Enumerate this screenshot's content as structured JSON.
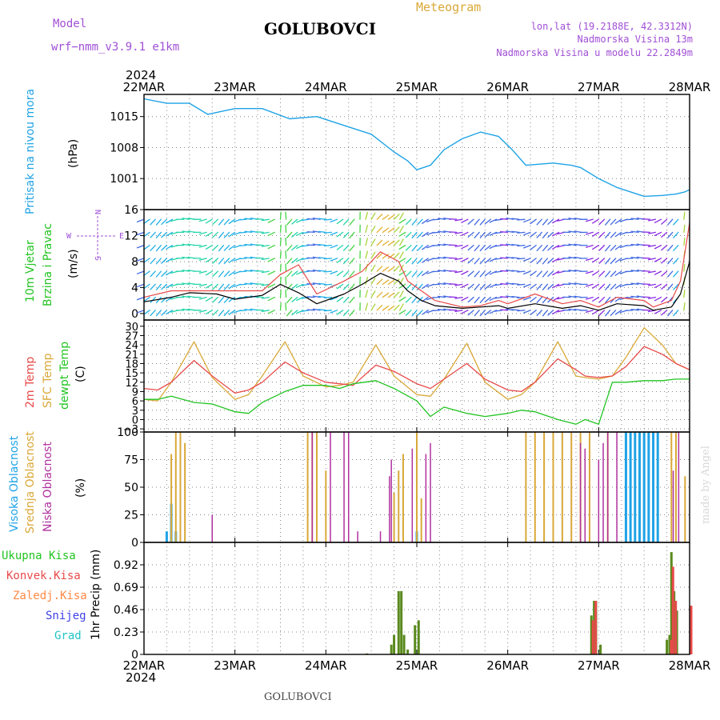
{
  "header": {
    "model_label": "Model",
    "model_name": "wrf−nmm_v3.9.1 e1km",
    "title": "GOLUBOVCI",
    "meteogram_label": "Meteogram",
    "lonlat": "lon,lat (19.2188E, 42.3312N)",
    "elevation": "Nadmorska Visina 13m",
    "model_elevation": "Nadmorska Visina u modelu 22.2849m",
    "year_top": "2024",
    "year_bottom": "2024",
    "footer_title": "GOLUBOVCI",
    "watermark": "made by Angel"
  },
  "colors": {
    "pressure": "#1fa3e6",
    "temp2m": "#e84a4a",
    "sfc_temp": "#d9a838",
    "dewpoint": "#22c422",
    "high_cloud": "#1fa3e6",
    "mid_cloud": "#d9a838",
    "low_cloud": "#b0309f",
    "total_precip": "#5a8a1e",
    "conv_precip": "#e84a4a",
    "gust": "#e84a4a",
    "wind_label": "#22c422",
    "legend_purple": "#a04fd6"
  },
  "chart_data": [
    {
      "type": "line",
      "name": "pressure-panel",
      "ylabel_main": "Pritisak na nivou mora",
      "ylabel_unit": "(hPa)",
      "ylim": [
        994,
        1020
      ],
      "yticks": [
        "1001",
        "1008",
        "1015"
      ],
      "ytick_values": [
        1001,
        1008,
        1015
      ],
      "x_day": [
        0,
        0.25,
        0.5,
        0.7,
        1.0,
        1.3,
        1.6,
        1.9,
        2.2,
        2.5,
        2.75,
        2.9,
        3.0,
        3.15,
        3.3,
        3.5,
        3.7,
        3.9,
        4.05,
        4.2,
        4.5,
        4.7,
        4.8,
        5.0,
        5.2,
        5.5,
        5.7,
        5.85,
        5.95,
        6.0
      ],
      "values": [
        1019,
        1018,
        1018,
        1015.5,
        1016.8,
        1016.8,
        1014.5,
        1015,
        1013,
        1011,
        1007,
        1005,
        1003,
        1004,
        1007.5,
        1010,
        1011.5,
        1010.5,
        1007.5,
        1004,
        1004.5,
        1004,
        1003.5,
        1001,
        999,
        997,
        997.2,
        997.5,
        998,
        998.5
      ],
      "grid": true
    },
    {
      "type": "line",
      "name": "wind-panel",
      "ylabel_main": "10m Vjetar",
      "ylabel_sub": "Brzina i Pravac",
      "ylabel_unit": "(m/s)",
      "compass_n": "N",
      "compass_s": "S",
      "compass_e": "E",
      "compass_w": "W",
      "ylim": [
        -1,
        16
      ],
      "yticks": [
        "0",
        "4",
        "8",
        "12",
        "16"
      ],
      "ytick_values": [
        0,
        4,
        8,
        12,
        16
      ],
      "x_day": [
        0,
        0.3,
        0.5,
        0.8,
        1.0,
        1.3,
        1.5,
        1.7,
        1.9,
        2.2,
        2.4,
        2.6,
        2.8,
        2.9,
        3.05,
        3.2,
        3.5,
        3.7,
        3.9,
        4.0,
        4.3,
        4.6,
        4.8,
        5.0,
        5.2,
        5.5,
        5.6,
        5.8,
        5.9,
        6.0
      ],
      "speed": [
        1.8,
        2.5,
        3.2,
        3.0,
        2.2,
        2.8,
        4.5,
        3.2,
        1.5,
        3.0,
        4.5,
        6.2,
        5.0,
        3.5,
        2.0,
        1.2,
        0.8,
        1.0,
        1.2,
        0.8,
        1.5,
        0.8,
        1.2,
        0.5,
        1.5,
        1.2,
        0.5,
        1.0,
        3.0,
        8.0
      ],
      "gust": [
        2.5,
        3.5,
        3.5,
        3.5,
        3.5,
        3.5,
        6.0,
        7.5,
        3.0,
        5.0,
        6.5,
        9.5,
        8.0,
        5.0,
        3.5,
        2.0,
        1.0,
        1.2,
        2.0,
        1.5,
        3.0,
        1.5,
        2.0,
        1.0,
        2.5,
        2.0,
        1.0,
        2.0,
        5.0,
        14.0
      ],
      "grid": true
    },
    {
      "type": "line",
      "name": "temperature-panel",
      "ylabel_2m": "2m Temp",
      "ylabel_sfc": "SFC Temp",
      "ylabel_dew": "dewpt Temp",
      "ylabel_unit": "(C)",
      "ylim": [
        -4,
        32
      ],
      "yticks": [
        "−3",
        "0",
        "3",
        "6",
        "9",
        "12",
        "15",
        "18",
        "21",
        "24",
        "27",
        "30"
      ],
      "ytick_values": [
        -3,
        0,
        3,
        6,
        9,
        12,
        15,
        18,
        21,
        24,
        27,
        30
      ],
      "x_day": [
        0,
        0.15,
        0.3,
        0.55,
        0.75,
        1.0,
        1.15,
        1.3,
        1.55,
        1.75,
        2.0,
        2.15,
        2.3,
        2.55,
        2.75,
        3.0,
        3.15,
        3.3,
        3.55,
        3.75,
        4.0,
        4.15,
        4.3,
        4.55,
        4.75,
        4.85,
        5.0,
        5.15,
        5.3,
        5.5,
        5.7,
        5.85,
        6.0
      ],
      "temp2m": [
        10,
        9.5,
        12,
        19,
        14,
        8.5,
        9.5,
        12,
        18.5,
        15,
        12,
        11.5,
        11,
        17.5,
        15.5,
        11.5,
        10,
        13,
        18,
        13,
        9.5,
        9,
        12,
        19.5,
        16,
        14,
        13.5,
        14,
        17,
        23.5,
        21,
        18,
        16
      ],
      "sfc": [
        6.5,
        6,
        12,
        25,
        13.5,
        6.5,
        8,
        14,
        25,
        14,
        10.5,
        11,
        12,
        24,
        14,
        8,
        7.5,
        13,
        24.5,
        12,
        6.5,
        8,
        12,
        25,
        14,
        13.5,
        13,
        14,
        20,
        29.5,
        24,
        18,
        16
      ],
      "dewpoint": [
        6.5,
        6.5,
        7.5,
        5.5,
        5,
        2.5,
        2,
        5.5,
        9,
        11,
        11,
        10,
        11.5,
        12.5,
        10,
        6,
        1,
        4,
        2,
        1,
        2,
        3,
        2.5,
        0,
        -1.5,
        0,
        -1.5,
        12,
        12,
        12.5,
        12.5,
        13,
        13
      ],
      "grid": true
    },
    {
      "type": "bar",
      "name": "cloud-panel",
      "ylabel_high": "Visoka Oblacnost",
      "ylabel_mid": "Srednja Oblacnost",
      "ylabel_low": "Niska Oblacnost",
      "ylabel_unit": "(%)",
      "ylim": [
        0,
        100
      ],
      "yticks": [
        "0",
        "25",
        "50",
        "75",
        "100"
      ],
      "ytick_values": [
        0,
        25,
        50,
        75,
        100
      ],
      "series": [
        {
          "name": "Visoka Oblacnost",
          "x_day": [
            0.25,
            0.3,
            0.35,
            3.0,
            5.3,
            5.35,
            5.4,
            5.45,
            5.5,
            5.55,
            5.6,
            5.65
          ],
          "values": [
            10,
            35,
            10,
            10,
            100,
            100,
            100,
            100,
            100,
            100,
            100,
            100
          ]
        },
        {
          "name": "Srednja Oblacnost",
          "x_day": [
            0.3,
            0.35,
            0.4,
            0.45,
            1.8,
            1.85,
            1.9,
            2.0,
            2.75,
            2.8,
            2.85,
            3.0,
            3.05,
            4.2,
            4.3,
            4.4,
            4.5,
            4.6,
            4.7,
            4.8,
            4.9,
            5.1,
            5.8,
            5.85,
            5.95
          ],
          "values": [
            80,
            100,
            100,
            90,
            100,
            100,
            100,
            65,
            45,
            65,
            80,
            100,
            40,
            100,
            100,
            100,
            100,
            100,
            100,
            100,
            100,
            100,
            100,
            100,
            60
          ]
        },
        {
          "name": "Niska Oblacnost",
          "x_day": [
            0.75,
            1.85,
            2.05,
            2.2,
            2.25,
            2.35,
            2.6,
            2.7,
            2.72,
            2.95,
            3.1,
            3.15,
            4.8,
            4.85,
            5.0,
            5.05,
            5.1,
            5.2,
            5.82,
            5.88
          ],
          "values": [
            25,
            100,
            100,
            100,
            100,
            10,
            10,
            60,
            75,
            85,
            80,
            90,
            90,
            85,
            75,
            90,
            100,
            100,
            65,
            100
          ]
        }
      ],
      "grid": true
    },
    {
      "type": "bar",
      "name": "precip-panel",
      "legend_total": "Ukupna Kisa",
      "legend_conv": "Konvek.Kisa",
      "legend_frozen": "Zaledj.Kisa",
      "legend_snow": "Snijeg",
      "legend_grad": "Grad",
      "ylabel": "1hr Precip (mm)",
      "ylim": [
        0,
        1.15
      ],
      "yticks": [
        "0",
        "0.23",
        "0.46",
        "0.69",
        "0.92"
      ],
      "ytick_values": [
        0,
        0.23,
        0.46,
        0.69,
        0.92
      ],
      "x_labels": [
        "22MAR",
        "23MAR",
        "24MAR",
        "25MAR",
        "26MAR",
        "27MAR",
        "28MAR"
      ],
      "series": [
        {
          "name": "Ukupna Kisa",
          "x_day": [
            2.45,
            2.72,
            2.75,
            2.8,
            2.83,
            2.86,
            2.9,
            2.98,
            3.02,
            4.92,
            4.95,
            4.97,
            5.02,
            5.75,
            5.78,
            5.8,
            5.83,
            5.86
          ],
          "values": [
            0.01,
            0.1,
            0.2,
            0.65,
            0.65,
            0.2,
            0.05,
            0.3,
            0.35,
            0.4,
            0.55,
            0.55,
            0.1,
            0.15,
            0.2,
            1.05,
            0.65,
            0.45
          ]
        },
        {
          "name": "Konvek.Kisa",
          "x_day": [
            4.92,
            4.95,
            5.78,
            5.8,
            5.83,
            6.0
          ],
          "values": [
            0.35,
            0.55,
            0.15,
            0.9,
            0.55,
            0.5
          ]
        }
      ],
      "grid": true
    }
  ]
}
